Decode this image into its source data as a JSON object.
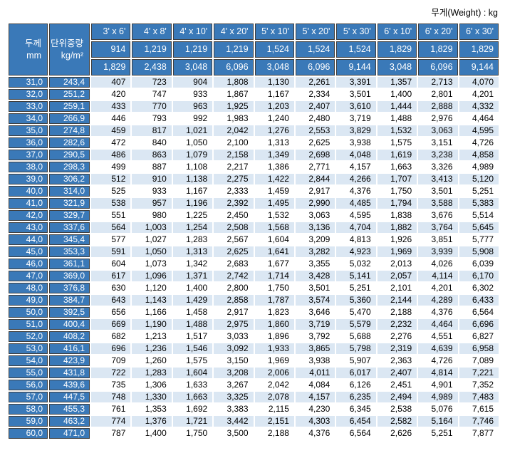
{
  "page": {
    "unit_label": "무게(Weight) : kg"
  },
  "colors": {
    "header_blue": "#3a79b8",
    "row_alt": "#dbe7f3",
    "border_dark": "#3f3f3f"
  },
  "table": {
    "corner": {
      "thickness_title": "두께",
      "thickness_unit": "mm",
      "unit_weight_title": "단위중량",
      "unit_weight_unit": "kg/m²"
    },
    "size_headers": [
      "3' x 6'",
      "4' x 8'",
      "4' x 10'",
      "4' x 20'",
      "5' x 10'",
      "5' x 20'",
      "5' x 30'",
      "6' x 10'",
      "6' x 20'",
      "6' x 30'"
    ],
    "width_row": [
      "914",
      "1,219",
      "1,219",
      "1,219",
      "1,524",
      "1,524",
      "1,524",
      "1,829",
      "1,829",
      "1,829"
    ],
    "length_row": [
      "1,829",
      "2,438",
      "3,048",
      "6,096",
      "3,048",
      "6,096",
      "9,144",
      "3,048",
      "6,096",
      "9,144"
    ],
    "rows": [
      {
        "thickness": "31,0",
        "unit_weight": "243,4",
        "weights": [
          "407",
          "723",
          "904",
          "1,808",
          "1,130",
          "2,261",
          "3,391",
          "1,357",
          "2,713",
          "4,070"
        ]
      },
      {
        "thickness": "32,0",
        "unit_weight": "251,2",
        "weights": [
          "420",
          "747",
          "933",
          "1,867",
          "1,167",
          "2,334",
          "3,501",
          "1,400",
          "2,801",
          "4,201"
        ]
      },
      {
        "thickness": "33,0",
        "unit_weight": "259,1",
        "weights": [
          "433",
          "770",
          "963",
          "1,925",
          "1,203",
          "2,407",
          "3,610",
          "1,444",
          "2,888",
          "4,332"
        ]
      },
      {
        "thickness": "34,0",
        "unit_weight": "266,9",
        "weights": [
          "446",
          "793",
          "992",
          "1,983",
          "1,240",
          "2,480",
          "3,719",
          "1,488",
          "2,976",
          "4,464"
        ]
      },
      {
        "thickness": "35,0",
        "unit_weight": "274,8",
        "weights": [
          "459",
          "817",
          "1,021",
          "2,042",
          "1,276",
          "2,553",
          "3,829",
          "1,532",
          "3,063",
          "4,595"
        ]
      },
      {
        "thickness": "36,0",
        "unit_weight": "282,6",
        "weights": [
          "472",
          "840",
          "1,050",
          "2,100",
          "1,313",
          "2,625",
          "3,938",
          "1,575",
          "3,151",
          "4,726"
        ]
      },
      {
        "thickness": "37,0",
        "unit_weight": "290,5",
        "weights": [
          "486",
          "863",
          "1,079",
          "2,158",
          "1,349",
          "2,698",
          "4,048",
          "1,619",
          "3,238",
          "4,858"
        ]
      },
      {
        "thickness": "38,0",
        "unit_weight": "298,3",
        "weights": [
          "499",
          "887",
          "1,108",
          "2,217",
          "1,386",
          "2,771",
          "4,157",
          "1,663",
          "3,326",
          "4,989"
        ]
      },
      {
        "thickness": "39,0",
        "unit_weight": "306,2",
        "weights": [
          "512",
          "910",
          "1,138",
          "2,275",
          "1,422",
          "2,844",
          "4,266",
          "1,707",
          "3,413",
          "5,120"
        ]
      },
      {
        "thickness": "40,0",
        "unit_weight": "314,0",
        "weights": [
          "525",
          "933",
          "1,167",
          "2,333",
          "1,459",
          "2,917",
          "4,376",
          "1,750",
          "3,501",
          "5,251"
        ]
      },
      {
        "thickness": "41,0",
        "unit_weight": "321,9",
        "weights": [
          "538",
          "957",
          "1,196",
          "2,392",
          "1,495",
          "2,990",
          "4,485",
          "1,794",
          "3,588",
          "5,383"
        ]
      },
      {
        "thickness": "42,0",
        "unit_weight": "329,7",
        "weights": [
          "551",
          "980",
          "1,225",
          "2,450",
          "1,532",
          "3,063",
          "4,595",
          "1,838",
          "3,676",
          "5,514"
        ]
      },
      {
        "thickness": "43,0",
        "unit_weight": "337,6",
        "weights": [
          "564",
          "1,003",
          "1,254",
          "2,508",
          "1,568",
          "3,136",
          "4,704",
          "1,882",
          "3,764",
          "5,645"
        ]
      },
      {
        "thickness": "44,0",
        "unit_weight": "345,4",
        "weights": [
          "577",
          "1,027",
          "1,283",
          "2,567",
          "1,604",
          "3,209",
          "4,813",
          "1,926",
          "3,851",
          "5,777"
        ]
      },
      {
        "thickness": "45,0",
        "unit_weight": "353,3",
        "weights": [
          "591",
          "1,050",
          "1,313",
          "2,625",
          "1,641",
          "3,282",
          "4,923",
          "1,969",
          "3,939",
          "5,908"
        ]
      },
      {
        "thickness": "46,0",
        "unit_weight": "361,1",
        "weights": [
          "604",
          "1,073",
          "1,342",
          "2,683",
          "1,677",
          "3,355",
          "5,032",
          "2,013",
          "4,026",
          "6,039"
        ]
      },
      {
        "thickness": "47,0",
        "unit_weight": "369,0",
        "weights": [
          "617",
          "1,096",
          "1,371",
          "2,742",
          "1,714",
          "3,428",
          "5,141",
          "2,057",
          "4,114",
          "6,170"
        ]
      },
      {
        "thickness": "48,0",
        "unit_weight": "376,8",
        "weights": [
          "630",
          "1,120",
          "1,400",
          "2,800",
          "1,750",
          "3,501",
          "5,251",
          "2,101",
          "4,201",
          "6,302"
        ]
      },
      {
        "thickness": "49,0",
        "unit_weight": "384,7",
        "weights": [
          "643",
          "1,143",
          "1,429",
          "2,858",
          "1,787",
          "3,574",
          "5,360",
          "2,144",
          "4,289",
          "6,433"
        ]
      },
      {
        "thickness": "50,0",
        "unit_weight": "392,5",
        "weights": [
          "656",
          "1,166",
          "1,458",
          "2,917",
          "1,823",
          "3,646",
          "5,470",
          "2,188",
          "4,376",
          "6,564"
        ]
      },
      {
        "thickness": "51,0",
        "unit_weight": "400,4",
        "weights": [
          "669",
          "1,190",
          "1,488",
          "2,975",
          "1,860",
          "3,719",
          "5,579",
          "2,232",
          "4,464",
          "6,696"
        ]
      },
      {
        "thickness": "52,0",
        "unit_weight": "408,2",
        "weights": [
          "682",
          "1,213",
          "1,517",
          "3,033",
          "1,896",
          "3,792",
          "5,688",
          "2,276",
          "4,551",
          "6,827"
        ]
      },
      {
        "thickness": "53,0",
        "unit_weight": "416,1",
        "weights": [
          "696",
          "1,236",
          "1,546",
          "3,092",
          "1,933",
          "3,865",
          "5,798",
          "2,319",
          "4,639",
          "6,958"
        ]
      },
      {
        "thickness": "54,0",
        "unit_weight": "423,9",
        "weights": [
          "709",
          "1,260",
          "1,575",
          "3,150",
          "1,969",
          "3,938",
          "5,907",
          "2,363",
          "4,726",
          "7,089"
        ]
      },
      {
        "thickness": "55,0",
        "unit_weight": "431,8",
        "weights": [
          "722",
          "1,283",
          "1,604",
          "3,208",
          "2,006",
          "4,011",
          "6,017",
          "2,407",
          "4,814",
          "7,221"
        ]
      },
      {
        "thickness": "56,0",
        "unit_weight": "439,6",
        "weights": [
          "735",
          "1,306",
          "1,633",
          "3,267",
          "2,042",
          "4,084",
          "6,126",
          "2,451",
          "4,901",
          "7,352"
        ]
      },
      {
        "thickness": "57,0",
        "unit_weight": "447,5",
        "weights": [
          "748",
          "1,330",
          "1,663",
          "3,325",
          "2,078",
          "4,157",
          "6,235",
          "2,494",
          "4,989",
          "7,483"
        ]
      },
      {
        "thickness": "58,0",
        "unit_weight": "455,3",
        "weights": [
          "761",
          "1,353",
          "1,692",
          "3,383",
          "2,115",
          "4,230",
          "6,345",
          "2,538",
          "5,076",
          "7,615"
        ]
      },
      {
        "thickness": "59,0",
        "unit_weight": "463,2",
        "weights": [
          "774",
          "1,376",
          "1,721",
          "3,442",
          "2,151",
          "4,303",
          "6,454",
          "2,582",
          "5,164",
          "7,746"
        ]
      },
      {
        "thickness": "60,0",
        "unit_weight": "471,0",
        "weights": [
          "787",
          "1,400",
          "1,750",
          "3,500",
          "2,188",
          "4,376",
          "6,564",
          "2,626",
          "5,251",
          "7,877"
        ]
      }
    ]
  }
}
